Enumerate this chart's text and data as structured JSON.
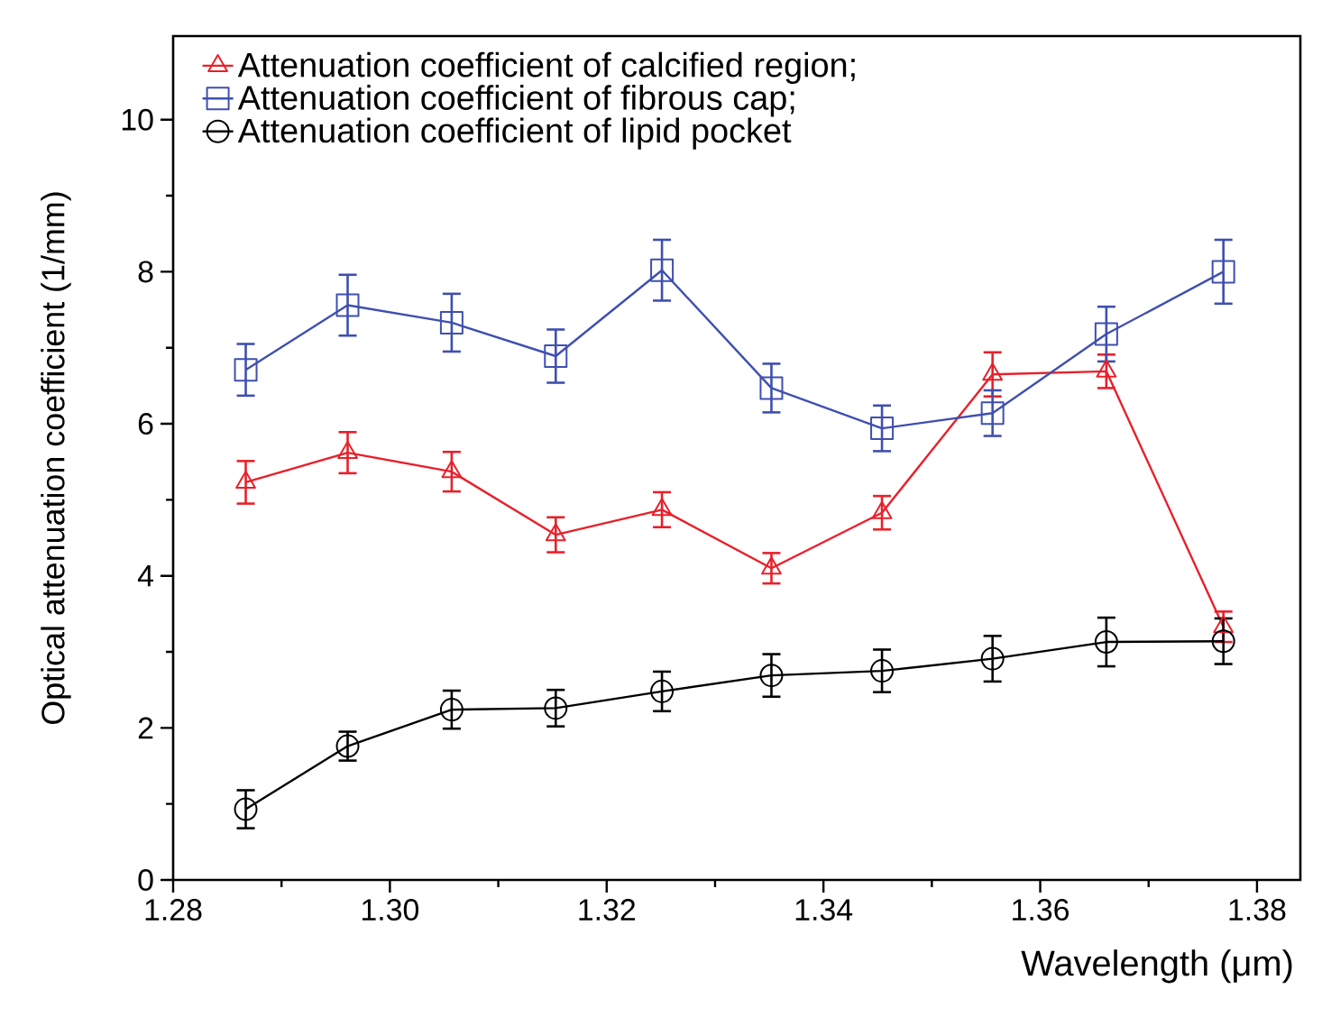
{
  "chart_data": {
    "type": "line",
    "xlabel": "Wavelength (μm)",
    "ylabel": "Optical attenuation coefficient (1/mm)",
    "x": [
      1.2867,
      1.2961,
      1.3057,
      1.3153,
      1.3251,
      1.3352,
      1.3454,
      1.3556,
      1.3661,
      1.3769
    ],
    "series": [
      {
        "name": "Attenuation coefficient of calcified region;",
        "color": "#e8202a",
        "marker": "triangle",
        "values": [
          5.23,
          5.62,
          5.37,
          4.54,
          4.87,
          4.1,
          4.83,
          6.65,
          6.69,
          3.33
        ],
        "errors": [
          0.28,
          0.27,
          0.26,
          0.23,
          0.23,
          0.2,
          0.22,
          0.29,
          0.22,
          0.2
        ]
      },
      {
        "name": "Attenuation coefficient of fibrous cap;",
        "color": "#3f4fb0",
        "marker": "square",
        "values": [
          6.71,
          7.56,
          7.33,
          6.89,
          8.02,
          6.47,
          5.94,
          6.14,
          7.18,
          8.0
        ],
        "errors": [
          0.34,
          0.4,
          0.38,
          0.35,
          0.4,
          0.32,
          0.3,
          0.3,
          0.36,
          0.42
        ]
      },
      {
        "name": "Attenuation coefficient of lipid pocket",
        "color": "#000000",
        "marker": "circle",
        "values": [
          0.93,
          1.76,
          2.24,
          2.26,
          2.48,
          2.69,
          2.75,
          2.91,
          3.13,
          3.14
        ],
        "errors": [
          0.25,
          0.19,
          0.25,
          0.24,
          0.26,
          0.28,
          0.28,
          0.3,
          0.32,
          0.3
        ]
      }
    ],
    "xlim": [
      1.28,
      1.384
    ],
    "ylim": [
      0,
      11.1
    ],
    "xticks": [
      1.28,
      {
        "value": 1.3,
        "label": "1.30"
      },
      1.32,
      1.34,
      1.36,
      1.38
    ],
    "yticks": [
      0,
      2,
      4,
      6,
      8,
      10
    ],
    "legend": "top left",
    "grid": false,
    "line_style": "solid"
  }
}
